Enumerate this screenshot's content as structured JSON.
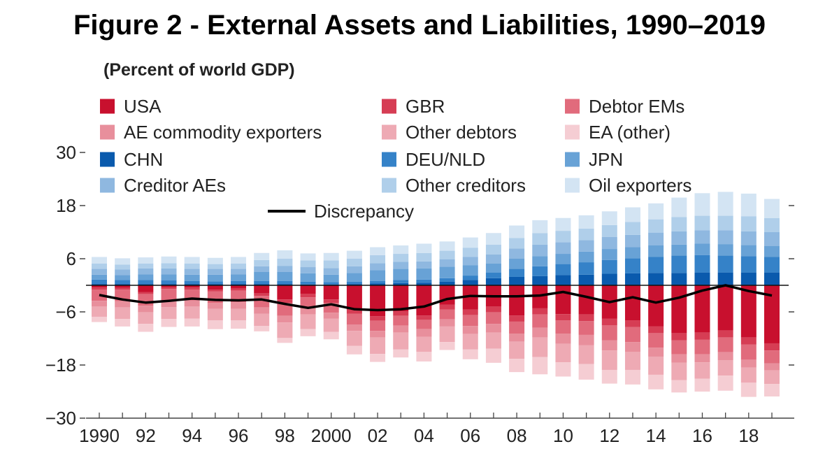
{
  "chart_data": {
    "type": "bar",
    "stacked": true,
    "title": "Figure 2 - External Assets and Liabilities, 1990–2019",
    "subtitle": "(Percent of world GDP)",
    "x": [
      1990,
      1991,
      1992,
      1993,
      1994,
      1995,
      1996,
      1997,
      1998,
      1999,
      2000,
      2001,
      2002,
      2003,
      2004,
      2005,
      2006,
      2007,
      2008,
      2009,
      2010,
      2011,
      2012,
      2013,
      2014,
      2015,
      2016,
      2017,
      2018,
      2019
    ],
    "x_tick_labels": [
      "1990",
      "92",
      "94",
      "96",
      "98",
      "2000",
      "02",
      "04",
      "06",
      "08",
      "10",
      "12",
      "14",
      "16",
      "18"
    ],
    "ylim": [
      -30,
      30
    ],
    "y_ticks": [
      30,
      18,
      6,
      -6,
      -18,
      -30
    ],
    "y_tick_labels": [
      "30",
      "18",
      "6",
      "−6",
      "−18",
      "−30"
    ],
    "grid": false,
    "legend_placement": "top-left",
    "legend_columns": 3,
    "series": [
      {
        "name": "USA",
        "color": "#c8102e",
        "values": [
          -0.5,
          -0.6,
          -1.5,
          -0.4,
          -0.5,
          -1.0,
          -0.7,
          -1.8,
          -3.2,
          -1.9,
          -3.2,
          -5.5,
          -7.0,
          -5.9,
          -6.8,
          -4.4,
          -5.5,
          -4.8,
          -6.8,
          -5.2,
          -6.5,
          -6.6,
          -7.5,
          -7.9,
          -9.3,
          -10.8,
          -10.7,
          -10.2,
          -11.8,
          -13.1
        ]
      },
      {
        "name": "GBR",
        "color": "#d63d54",
        "values": [
          -0.5,
          -0.4,
          -0.5,
          -0.4,
          -0.5,
          -0.4,
          -0.5,
          -0.6,
          -0.8,
          -0.8,
          -0.8,
          -0.9,
          -1.0,
          -1.0,
          -1.0,
          -1.1,
          -1.2,
          -1.3,
          -1.4,
          -1.4,
          -1.4,
          -1.5,
          -1.5,
          -1.5,
          -1.5,
          -1.6,
          -1.6,
          -1.6,
          -1.6,
          -1.6
        ]
      },
      {
        "name": "Debtor EMs",
        "color": "#e16b7c",
        "values": [
          -2.5,
          -2.6,
          -2.6,
          -2.6,
          -2.4,
          -2.6,
          -2.6,
          -2.6,
          -2.9,
          -2.5,
          -2.2,
          -2.5,
          -2.3,
          -2.2,
          -2.1,
          -2.2,
          -2.5,
          -2.6,
          -2.7,
          -3.0,
          -3.0,
          -3.1,
          -3.4,
          -3.4,
          -3.3,
          -3.2,
          -3.3,
          -3.3,
          -3.4,
          -2.9
        ]
      },
      {
        "name": "AE commodity exporters",
        "color": "#e88f9c",
        "values": [
          -1.3,
          -1.4,
          -1.5,
          -1.5,
          -1.4,
          -1.3,
          -1.5,
          -1.4,
          -1.5,
          -1.4,
          -1.3,
          -1.4,
          -1.5,
          -1.6,
          -1.7,
          -1.6,
          -1.8,
          -2.0,
          -1.8,
          -2.2,
          -2.3,
          -2.3,
          -2.3,
          -2.2,
          -2.0,
          -1.9,
          -1.8,
          -1.8,
          -1.8,
          -1.6
        ]
      },
      {
        "name": "Other debtors",
        "color": "#eeaab4",
        "values": [
          -2.3,
          -2.6,
          -2.6,
          -2.7,
          -2.7,
          -2.6,
          -2.6,
          -2.8,
          -3.5,
          -3.3,
          -3.0,
          -3.4,
          -3.7,
          -3.8,
          -3.4,
          -3.5,
          -3.5,
          -3.6,
          -3.9,
          -4.4,
          -4.2,
          -4.3,
          -4.4,
          -4.1,
          -4.1,
          -3.9,
          -3.7,
          -3.5,
          -3.4,
          -3.1
        ]
      },
      {
        "name": "EA (other)",
        "color": "#f5cdd3",
        "values": [
          -1.2,
          -1.7,
          -1.8,
          -1.8,
          -1.8,
          -2.0,
          -1.9,
          -1.2,
          -1.1,
          -1.6,
          -1.7,
          -1.9,
          -1.8,
          -1.8,
          -2.2,
          -1.8,
          -2.2,
          -3.2,
          -3.0,
          -3.9,
          -3.2,
          -3.5,
          -3.1,
          -3.3,
          -3.3,
          -2.8,
          -2.9,
          -3.4,
          -3.2,
          -2.8
        ]
      },
      {
        "name": "CHN",
        "color": "#0a5aad",
        "values": [
          0.3,
          0.3,
          0.3,
          0.3,
          0.3,
          0.3,
          0.3,
          0.3,
          0.3,
          0.2,
          0.2,
          0.3,
          0.4,
          0.5,
          0.6,
          0.8,
          1.2,
          1.6,
          1.9,
          2.1,
          2.3,
          2.4,
          2.6,
          2.7,
          2.8,
          2.8,
          2.9,
          2.9,
          2.9,
          2.9
        ]
      },
      {
        "name": "DEU/NLD",
        "color": "#3582c8",
        "values": [
          1.0,
          0.9,
          0.9,
          0.8,
          0.7,
          0.6,
          0.7,
          0.7,
          0.7,
          0.6,
          0.5,
          0.5,
          0.6,
          0.7,
          0.7,
          0.8,
          1.0,
          1.3,
          1.8,
          2.2,
          2.5,
          2.8,
          3.1,
          3.4,
          3.6,
          3.9,
          3.9,
          3.8,
          3.7,
          3.5
        ]
      },
      {
        "name": "JPN",
        "color": "#68a2d6",
        "values": [
          1.1,
          1.1,
          1.3,
          1.4,
          1.4,
          1.5,
          1.5,
          2.0,
          2.0,
          1.9,
          1.7,
          2.0,
          2.4,
          2.5,
          2.5,
          2.6,
          2.3,
          2.0,
          2.3,
          2.3,
          2.3,
          2.4,
          2.5,
          2.5,
          2.6,
          2.5,
          2.6,
          2.6,
          2.5,
          2.5
        ]
      },
      {
        "name": "Creditor AEs",
        "color": "#8fb8e0",
        "values": [
          1.3,
          1.3,
          1.3,
          1.3,
          1.3,
          1.3,
          1.2,
          1.3,
          1.4,
          1.4,
          1.5,
          1.5,
          1.6,
          1.6,
          1.6,
          1.7,
          1.9,
          2.1,
          2.3,
          2.6,
          2.6,
          2.6,
          2.7,
          2.8,
          2.9,
          3.0,
          3.0,
          3.1,
          3.1,
          3.1
        ]
      },
      {
        "name": "Other creditors",
        "color": "#b0cfea",
        "values": [
          1.2,
          1.1,
          1.1,
          1.2,
          1.2,
          1.1,
          1.2,
          1.4,
          1.6,
          1.5,
          1.7,
          1.7,
          1.8,
          1.8,
          1.9,
          1.9,
          2.1,
          2.2,
          2.4,
          2.6,
          2.6,
          2.6,
          2.7,
          2.9,
          3.0,
          3.2,
          3.3,
          3.3,
          3.4,
          3.2
        ]
      },
      {
        "name": "Oil exporters",
        "color": "#d3e4f3",
        "values": [
          1.5,
          1.4,
          1.4,
          1.5,
          1.5,
          1.4,
          1.5,
          1.6,
          1.9,
          1.6,
          1.7,
          1.8,
          1.8,
          1.9,
          2.1,
          2.1,
          2.3,
          2.6,
          2.8,
          2.9,
          2.9,
          3.0,
          3.1,
          3.3,
          3.6,
          4.4,
          5.1,
          5.4,
          5.1,
          4.3
        ]
      }
    ],
    "discrepancy": {
      "name": "Discrepancy",
      "color": "#000000",
      "values": [
        -2.2,
        -3.2,
        -3.9,
        -3.5,
        -3.0,
        -3.3,
        -3.4,
        -3.2,
        -4.2,
        -5.1,
        -4.3,
        -5.4,
        -5.6,
        -5.4,
        -4.8,
        -3.1,
        -2.4,
        -2.5,
        -2.5,
        -2.3,
        -1.5,
        -2.6,
        -3.8,
        -2.7,
        -3.9,
        -2.8,
        -1.2,
        0.0,
        -1.3,
        -2.3
      ]
    }
  }
}
